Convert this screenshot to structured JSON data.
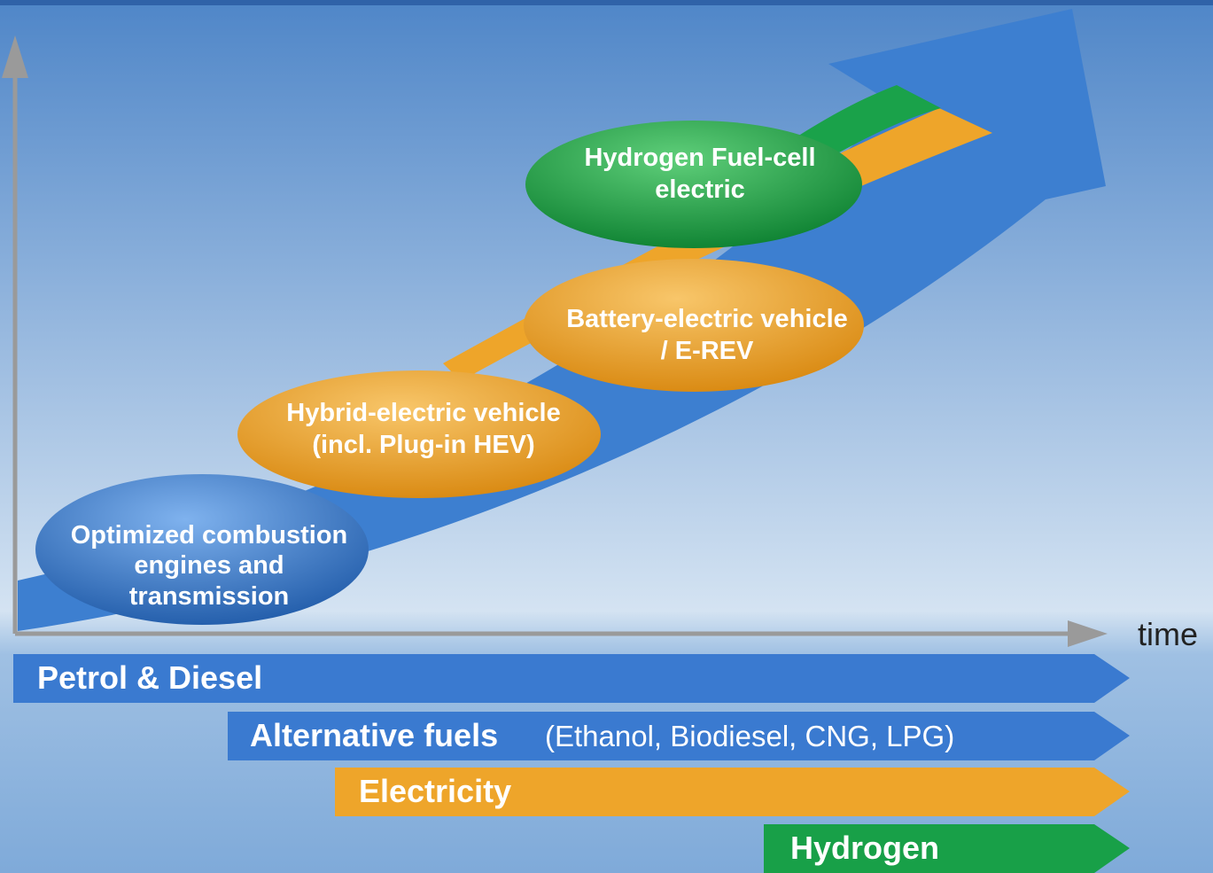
{
  "axis": {
    "x_label": "time"
  },
  "stages": [
    {
      "lines": [
        "Optimized combustion",
        "engines and",
        "transmission"
      ]
    },
    {
      "lines": [
        "Hybrid-electric vehicle",
        "(incl. Plug-in HEV)"
      ]
    },
    {
      "lines": [
        "Battery-electric vehicle",
        "/ E-REV"
      ]
    },
    {
      "lines": [
        "Hydrogen Fuel-cell",
        "electric"
      ]
    }
  ],
  "fuels": [
    {
      "label": "Petrol & Diesel"
    },
    {
      "label": "Alternative fuels",
      "detail": "(Ethanol, Biodiesel, CNG, LPG)"
    },
    {
      "label": "Electricity"
    },
    {
      "label": "Hydrogen"
    }
  ]
}
